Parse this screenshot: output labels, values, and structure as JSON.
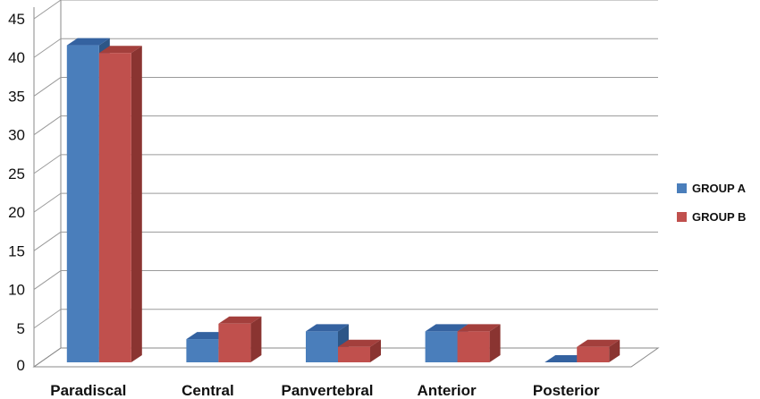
{
  "chart_data": {
    "type": "bar",
    "categories": [
      "Paradiscal",
      "Central",
      "Panvertebral",
      "Anterior",
      "Posterior"
    ],
    "series": [
      {
        "name": "GROUP A",
        "values": [
          41,
          3,
          4,
          4,
          0
        ],
        "color": "#4a7ebb",
        "top_color": "#3462a0",
        "side_color": "#2d5687"
      },
      {
        "name": "GROUP B",
        "values": [
          40,
          5,
          2,
          4,
          2
        ],
        "color": "#c0504d",
        "top_color": "#a33f3c",
        "side_color": "#8a3431"
      }
    ],
    "title": "",
    "xlabel": "",
    "ylabel": "",
    "ylim": [
      0,
      45
    ],
    "yticks": [
      0,
      5,
      10,
      15,
      20,
      25,
      30,
      35,
      40,
      45
    ],
    "grid": true,
    "legend": "right"
  }
}
